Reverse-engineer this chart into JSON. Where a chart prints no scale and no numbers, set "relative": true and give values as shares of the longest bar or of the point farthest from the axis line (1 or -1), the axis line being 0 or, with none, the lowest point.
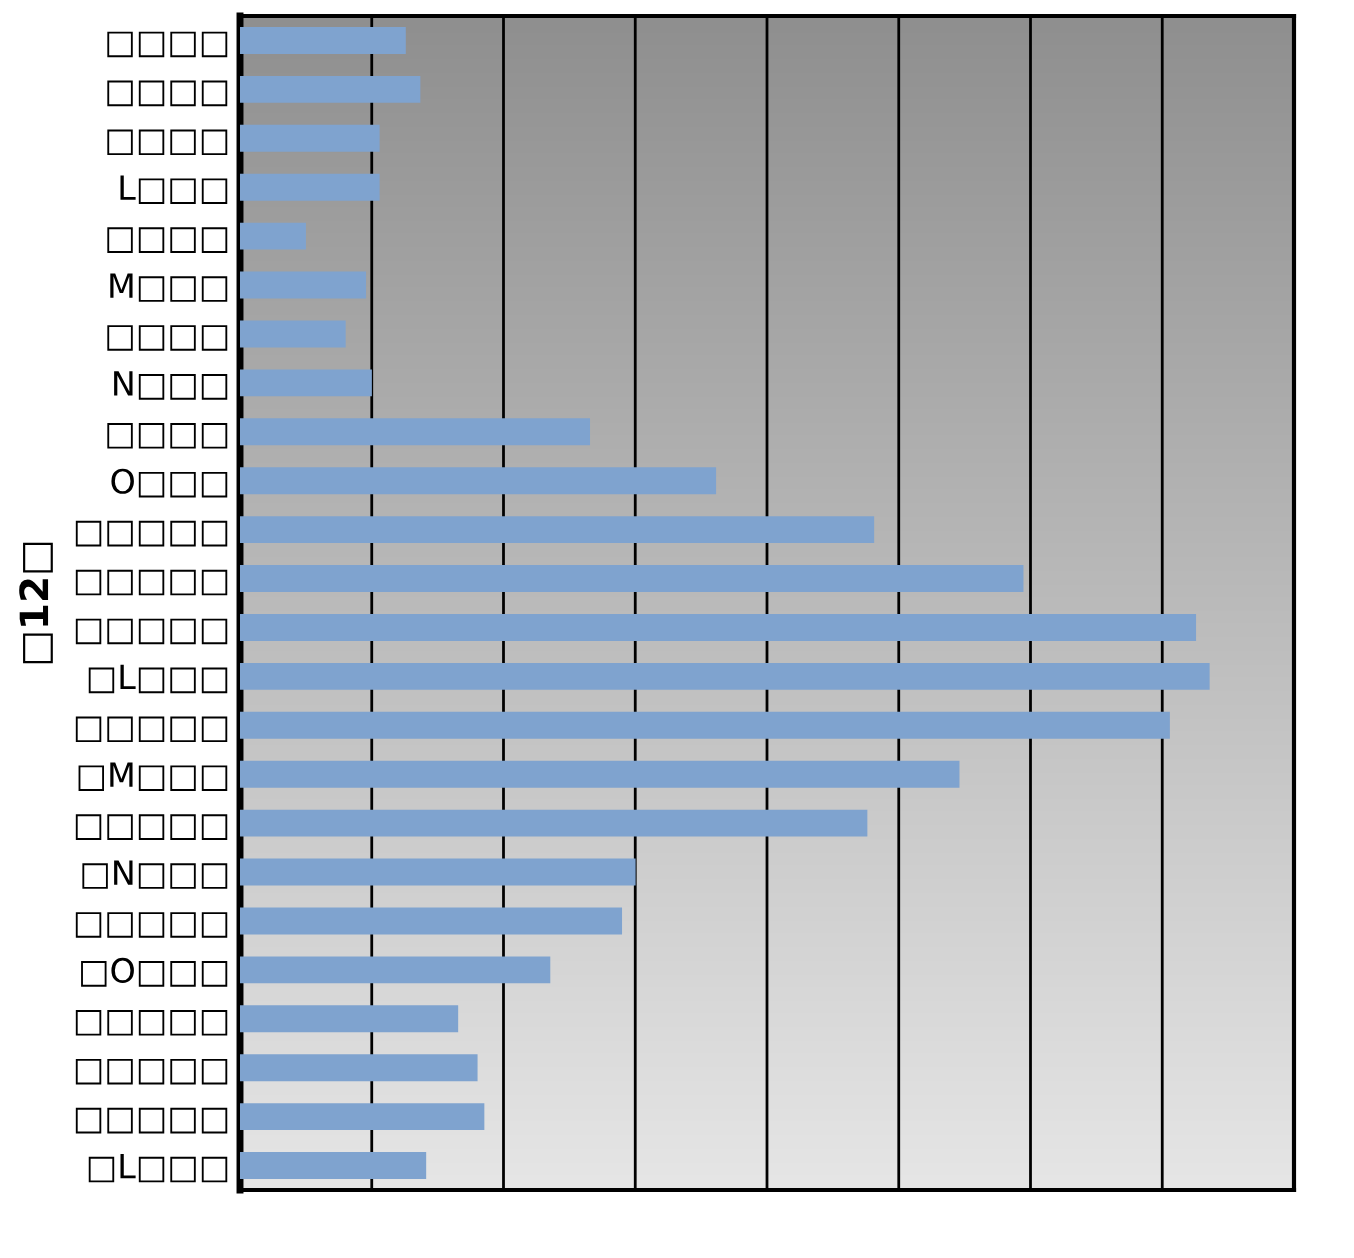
{
  "chart_data": {
    "type": "bar",
    "orientation": "horizontal",
    "relative": true,
    "ylabel": "□12□",
    "categories": [
      "□□□□",
      "□□□□",
      "□□□□",
      "L□□□",
      "□□□□",
      "M□□□",
      "□□□□",
      "N□□□",
      "□□□□",
      "O□□□",
      "□□□□□",
      "□□□□□",
      "□□□□□",
      "□L□□□",
      "□□□□□",
      "□M□□□",
      "□□□□□",
      "□N□□□",
      "□□□□□",
      "□O□□□",
      "□□□□□",
      "□□□□□",
      "□□□□□",
      "□L□□□"
    ],
    "values": [
      0.171,
      0.186,
      0.144,
      0.144,
      0.068,
      0.13,
      0.109,
      0.136,
      0.361,
      0.491,
      0.654,
      0.808,
      0.986,
      1,
      0.959,
      0.742,
      0.647,
      0.408,
      0.394,
      0.32,
      0.225,
      0.245,
      0.252,
      0.192
    ],
    "color": "#7fa3cf",
    "grid": "x"
  }
}
